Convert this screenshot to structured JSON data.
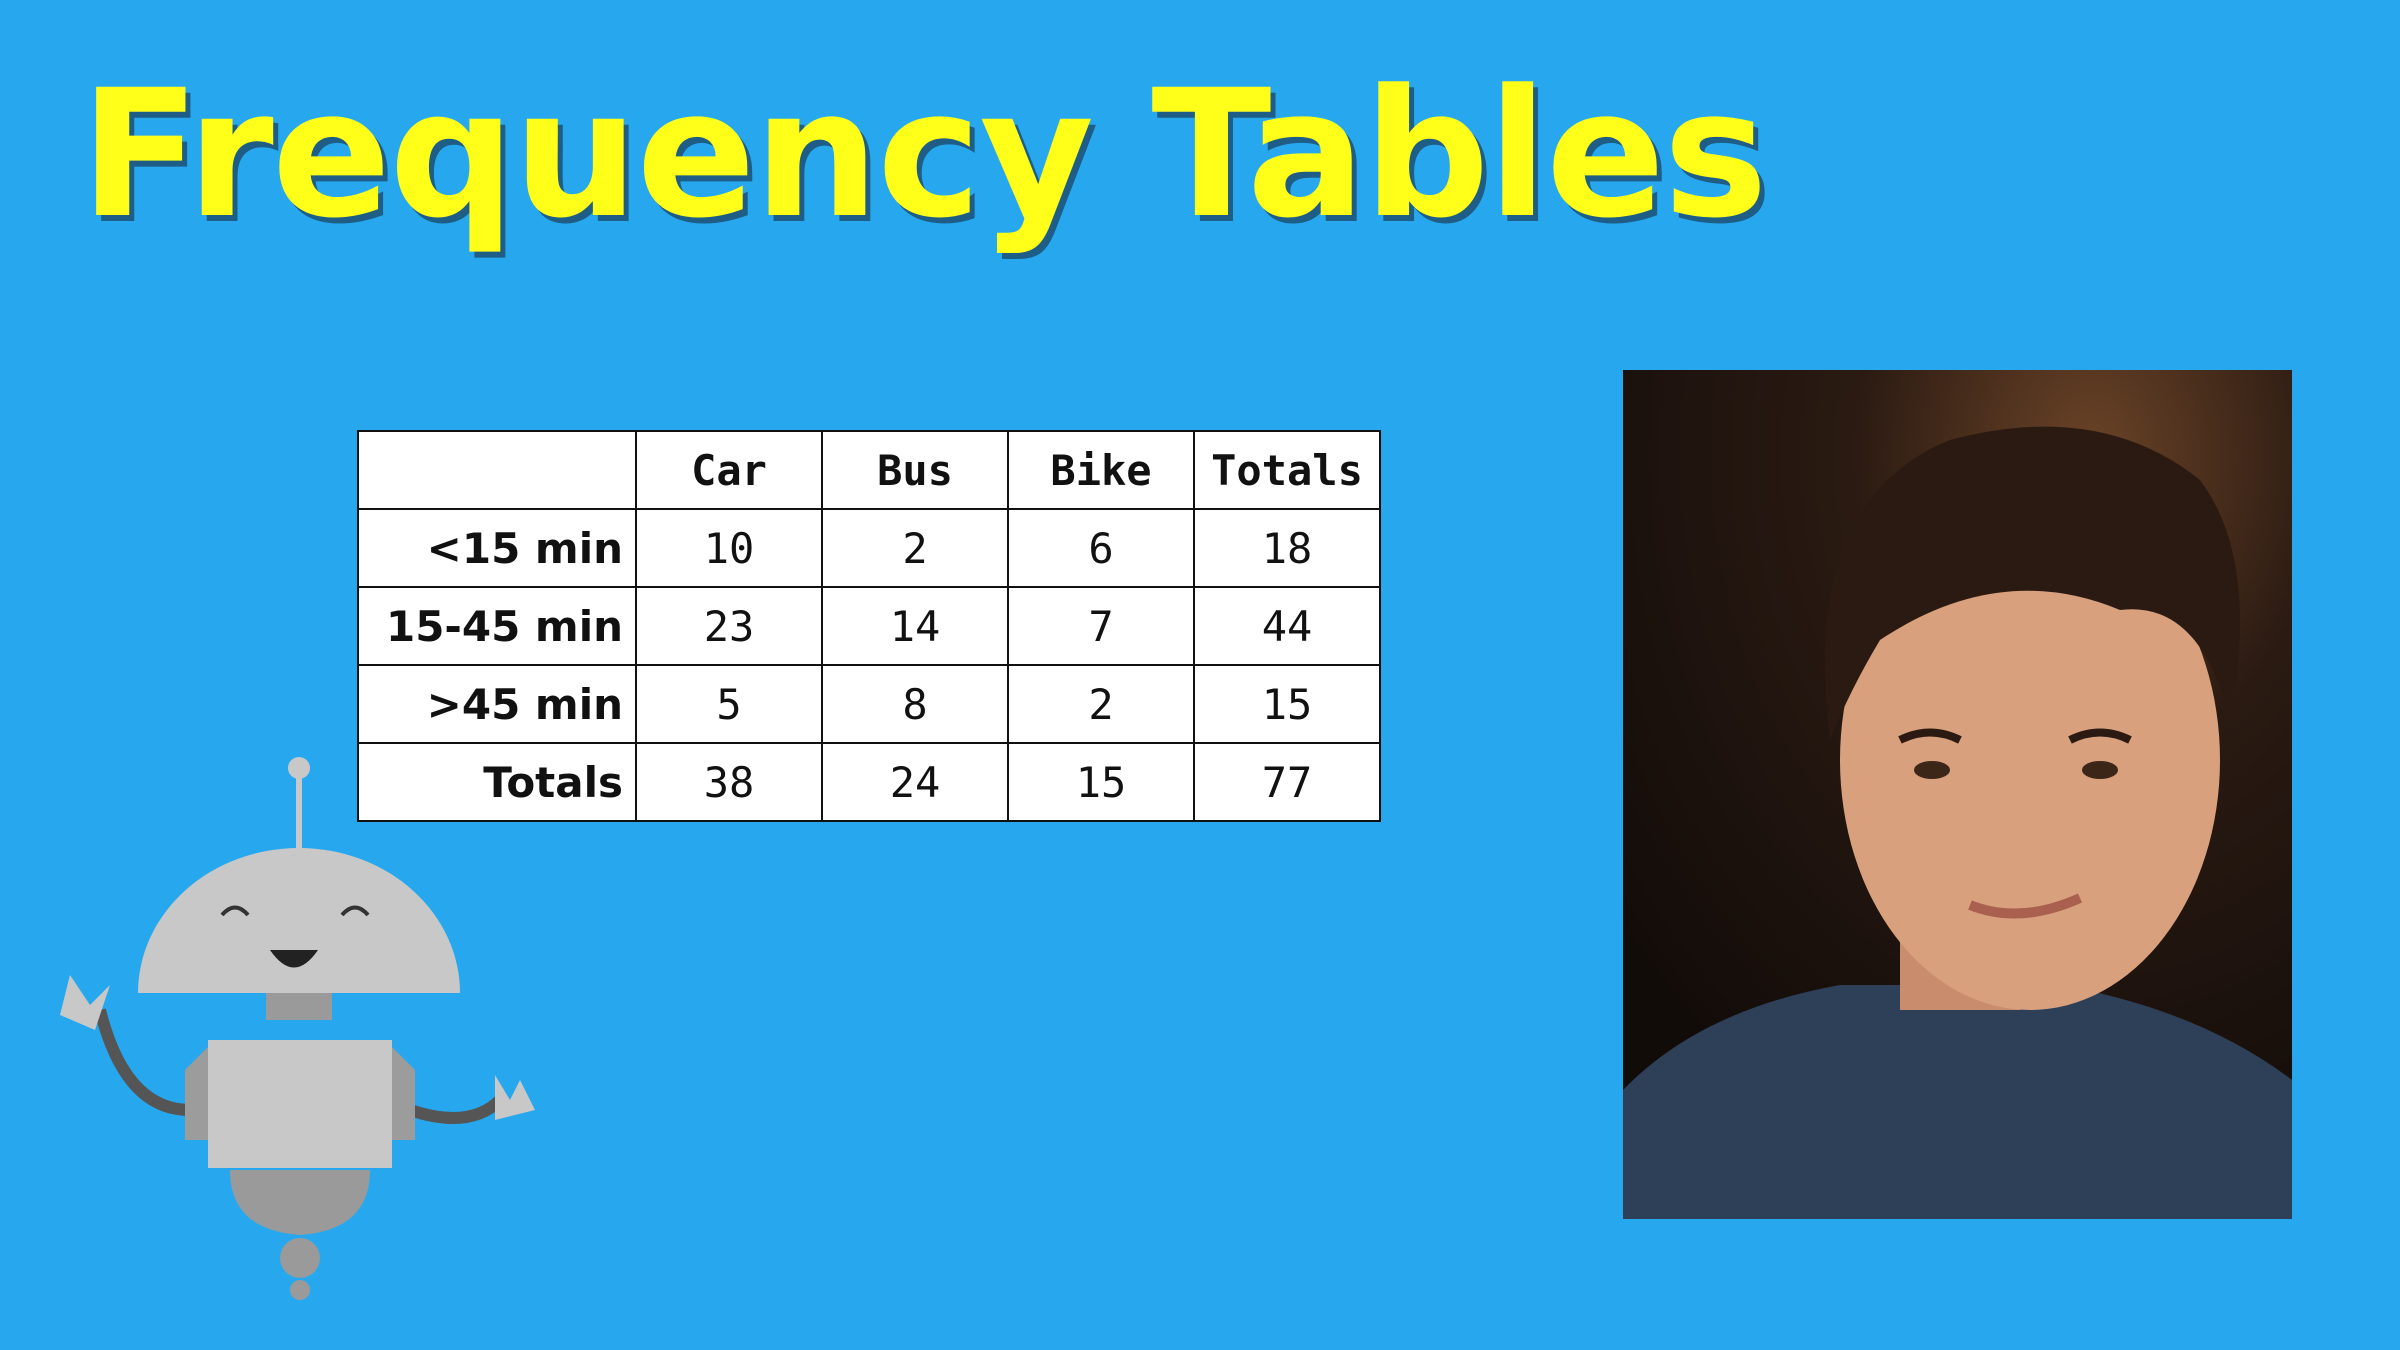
{
  "title": "Frequency Tables",
  "table": {
    "header": [
      "Car",
      "Bus",
      "Bike",
      "Totals"
    ],
    "rows": [
      {
        "label": "<15 min",
        "values": [
          10,
          2,
          6,
          18
        ]
      },
      {
        "label": "15-45 min",
        "values": [
          23,
          14,
          7,
          44
        ]
      },
      {
        "label": ">45 min",
        "values": [
          5,
          8,
          2,
          15
        ]
      },
      {
        "label": "Totals",
        "values": [
          38,
          24,
          15,
          77
        ]
      }
    ]
  }
}
